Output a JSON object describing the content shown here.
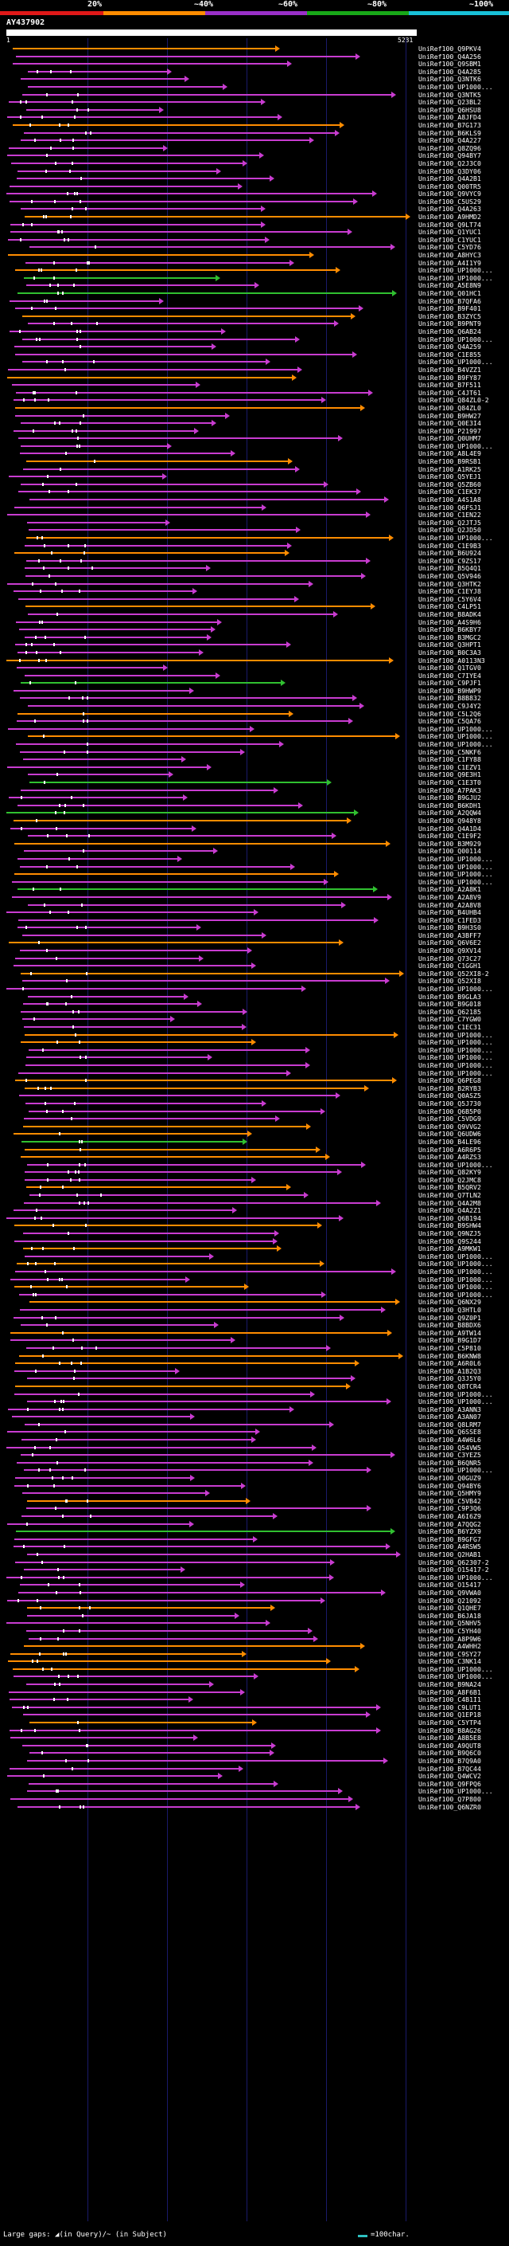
{
  "legend": {
    "labels": [
      "20%",
      "~40%",
      "~60%",
      "~80%",
      "~100%"
    ],
    "colors": [
      "#e01818",
      "#ff8c00",
      "#9a30c8",
      "#18a818",
      "#18c0d8"
    ]
  },
  "query": {
    "name": "AY437902",
    "start": "1",
    "length": "5231"
  },
  "colors": {
    "orange": "#ff8c00",
    "magenta": "#c83cd0",
    "green": "#30c030"
  },
  "hit_ids": [
    "UniRef100_Q9PKV4",
    "UniRef100_Q4A256",
    "UniRef100_Q9SBM1",
    "UniRef100_Q4A285",
    "UniRef100_Q3NTK6",
    "UniRef100_UP1000...",
    "UniRef100_Q3NTK5",
    "UniRef100_Q23BL2",
    "UniRef100_Q6HSU8",
    "UniRef100_A8JFD4",
    "UniRef100_B7G173",
    "UniRef100_B6KLS9",
    "UniRef100_Q4A227",
    "UniRef100_Q8ZQ96",
    "UniRef100_Q94BY7",
    "UniRef100_Q2J3C0",
    "UniRef100_Q3DY06",
    "UniRef100_Q4A2B1",
    "UniRef100_Q00TR5",
    "UniRef100_Q9VYC9",
    "UniRef100_C5US29",
    "UniRef100_Q4A263",
    "UniRef100_A9HMD2",
    "UniRef100_Q9LT74",
    "UniRef100_Q1YUC1",
    "UniRef100_C1YUC1",
    "UniRef100_C5YD76",
    "UniRef100_A8HYC3",
    "UniRef100_A4I1Y9",
    "UniRef100_UP1000...",
    "UniRef100_UP1000...",
    "UniRef100_A5E8N9",
    "UniRef100_Q01HC1",
    "UniRef100_B7QFA6",
    "UniRef100_B9F401",
    "UniRef100_B3ZYC5",
    "UniRef100_B9PNT9",
    "UniRef100_Q6AB24",
    "UniRef100_UP1000...",
    "UniRef100_Q4A259",
    "UniRef100_C1E855",
    "UniRef100_UP1000...",
    "UniRef100_B4VZZ1",
    "UniRef100_B9FY87",
    "UniRef100_B7F511",
    "UniRef100_C4JT61",
    "UniRef100_Q84ZL0-2",
    "UniRef100_Q84ZL0",
    "UniRef100_B9HW27",
    "UniRef100_Q0E3I4",
    "UniRef100_P21997",
    "UniRef100_Q0UHM7",
    "UniRef100_UP1000...",
    "UniRef100_A8L4E9",
    "UniRef100_B9RSB1",
    "UniRef100_A1RK25",
    "UniRef100_Q5YEJ1",
    "UniRef100_Q5ZB60",
    "UniRef100_C1EK37",
    "UniRef100_A4S1A8",
    "UniRef100_Q6FSJ1",
    "UniRef100_C1EN22",
    "UniRef100_Q2JTJ5",
    "UniRef100_Q2JD50",
    "UniRef100_UP1000...",
    "UniRef100_C1E9B3",
    "UniRef100_B6U924",
    "UniRef100_C9ZS17",
    "UniRef100_B5Q4Q1",
    "UniRef100_Q5V946",
    "UniRef100_Q3HTK2",
    "UniRef100_C1EYJ8",
    "UniRef100_C5Y6V4",
    "UniRef100_C4LP51",
    "UniRef100_B8ADK4",
    "UniRef100_A4S9H6",
    "UniRef100_B6KBY7",
    "UniRef100_B3MGC2",
    "UniRef100_Q3HPT1",
    "UniRef100_B0C3A3",
    "UniRef100_A0113N3",
    "UniRef100_Q1TGV0",
    "UniRef100_C7IYE4",
    "UniRef100_C9PJF1",
    "UniRef100_B9HWP9",
    "UniRef100_B8B832",
    "UniRef100_C9J4Y2",
    "UniRef100_C5L2Q6",
    "UniRef100_C5QA76",
    "UniRef100_UP1000...",
    "UniRef100_UP1000...",
    "UniRef100_UP1000...",
    "UniRef100_C5NKF6",
    "UniRef100_C1FY88",
    "UniRef100_C1EZV1",
    "UniRef100_Q9E3H1",
    "UniRef100_C1E3T0",
    "UniRef100_A7PAK3",
    "UniRef100_B9GJU2",
    "UniRef100_B6KDH1",
    "UniRef100_A2QQW4",
    "UniRef100_Q948Y8",
    "UniRef100_Q4A1D4",
    "UniRef100_C1E9F2",
    "UniRef100_B3M929",
    "UniRef100_Q00114",
    "UniRef100_UP1000...",
    "UniRef100_UP1000...",
    "UniRef100_UP1000...",
    "UniRef100_UP1000...",
    "UniRef100_A2A8K1",
    "UniRef100_A2A8V9",
    "UniRef100_A2A8V8",
    "UniRef100_B4UHB4",
    "UniRef100_C1FED3",
    "UniRef100_B9H3S0",
    "UniRef100_A3BFF7",
    "UniRef100_Q6V6E2",
    "UniRef100_Q9XV14",
    "UniRef100_Q73C27",
    "UniRef100_C1GGH1",
    "UniRef100_Q52XI8-2",
    "UniRef100_Q52XI8",
    "UniRef100_UP1000...",
    "UniRef100_B9GLA3",
    "UniRef100_B9G018",
    "UniRef100_Q62185",
    "UniRef100_C7YGW0",
    "UniRef100_C1EC31",
    "UniRef100_UP1000...",
    "UniRef100_UP1000...",
    "UniRef100_UP1000...",
    "UniRef100_UP1000...",
    "UniRef100_UP1000...",
    "UniRef100_UP1000...",
    "UniRef100_Q6PEG8",
    "UniRef100_B2RYB3",
    "UniRef100_Q0ASZ5",
    "UniRef100_Q5J730",
    "UniRef100_Q6B5P0",
    "UniRef100_C5VDG9",
    "UniRef100_Q9VVG2",
    "UniRef100_Q6UDW6",
    "UniRef100_B4LE96",
    "UniRef100_A6R6P5",
    "UniRef100_A4RZS3",
    "UniRef100_UP1000...",
    "UniRef100_Q82KY9",
    "UniRef100_Q2JMC8",
    "UniRef100_B5QRV2",
    "UniRef100_Q7TLN2",
    "UniRef100_Q4A2M8",
    "UniRef100_Q4A2Z1",
    "UniRef100_Q6B194",
    "UniRef100_B9SHW4",
    "UniRef100_Q9NZJ5",
    "UniRef100_Q9S244",
    "UniRef100_A9MKW1",
    "UniRef100_UP1000...",
    "UniRef100_UP1000...",
    "UniRef100_UP1000...",
    "UniRef100_UP1000...",
    "UniRef100_UP1000...",
    "UniRef100_UP1000...",
    "UniRef100_Q6NX29",
    "UniRef100_Q3HTL0",
    "UniRef100_Q9Z0P1",
    "UniRef100_B8BDX6",
    "UniRef100_A9TW14",
    "UniRef100_B9G1D7",
    "UniRef100_C5P810",
    "UniRef100_B6KNW8",
    "UniRef100_A6R0L6",
    "UniRef100_A1B2Q3",
    "UniRef100_Q3J5Y0",
    "UniRef100_Q8TCR4",
    "UniRef100_UP1000...",
    "UniRef100_UP1000...",
    "UniRef100_A3ANN3",
    "UniRef100_A3AN07",
    "UniRef100_Q8LRM7",
    "UniRef100_Q6SSE8",
    "UniRef100_A4W6L6",
    "UniRef100_Q54VW5",
    "UniRef100_C3YEZ5",
    "UniRef100_B6QNR5",
    "UniRef100_UP1000...",
    "UniRef100_Q0GUZ9",
    "UniRef100_Q94BY6",
    "UniRef100_Q5HMY9",
    "UniRef100_C5VB42",
    "UniRef100_C9P3Q6",
    "UniRef100_A6I6Z9",
    "UniRef100_A7QQG2",
    "UniRef100_B6YZX9",
    "UniRef100_B9GFG7",
    "UniRef100_A4RSW5",
    "UniRef100_Q2HAB1",
    "UniRef100_Q62307-2",
    "UniRef100_O15417-2",
    "UniRef100_UP1000...",
    "UniRef100_O15417",
    "UniRef100_Q9VWA0",
    "UniRef100_Q21092",
    "UniRef100_Q1QHE7",
    "UniRef100_B6JA18",
    "UniRef100_Q5NHV5",
    "UniRef100_C5YH40",
    "UniRef100_A8P9W6",
    "UniRef100_A4WHH2",
    "UniRef100_C9SY27",
    "UniRef100_C3NK14",
    "UniRef100_UP1000...",
    "UniRef100_UP1000...",
    "UniRef100_B9NA24",
    "UniRef100_A8F6B1",
    "UniRef100_C4B1I1",
    "UniRef100_C9LUT1",
    "UniRef100_Q1EP18",
    "UniRef100_C5YTP4",
    "UniRef100_B8AG26",
    "UniRef100_A8B5E8",
    "UniRef100_A9QUT8",
    "UniRef100_B9Q6C0",
    "UniRef100_B7Q9A0",
    "UniRef100_B7QC44",
    "UniRef100_Q4WCV2",
    "UniRef100_Q9FPQ6",
    "UniRef100_UP1000...",
    "UniRef100_Q7P800",
    "UniRef100_Q6NZR0"
  ],
  "footer": {
    "large_gaps": "Large gaps: ◢(in Query)/~ (in Subject)",
    "scale": "=100char."
  }
}
